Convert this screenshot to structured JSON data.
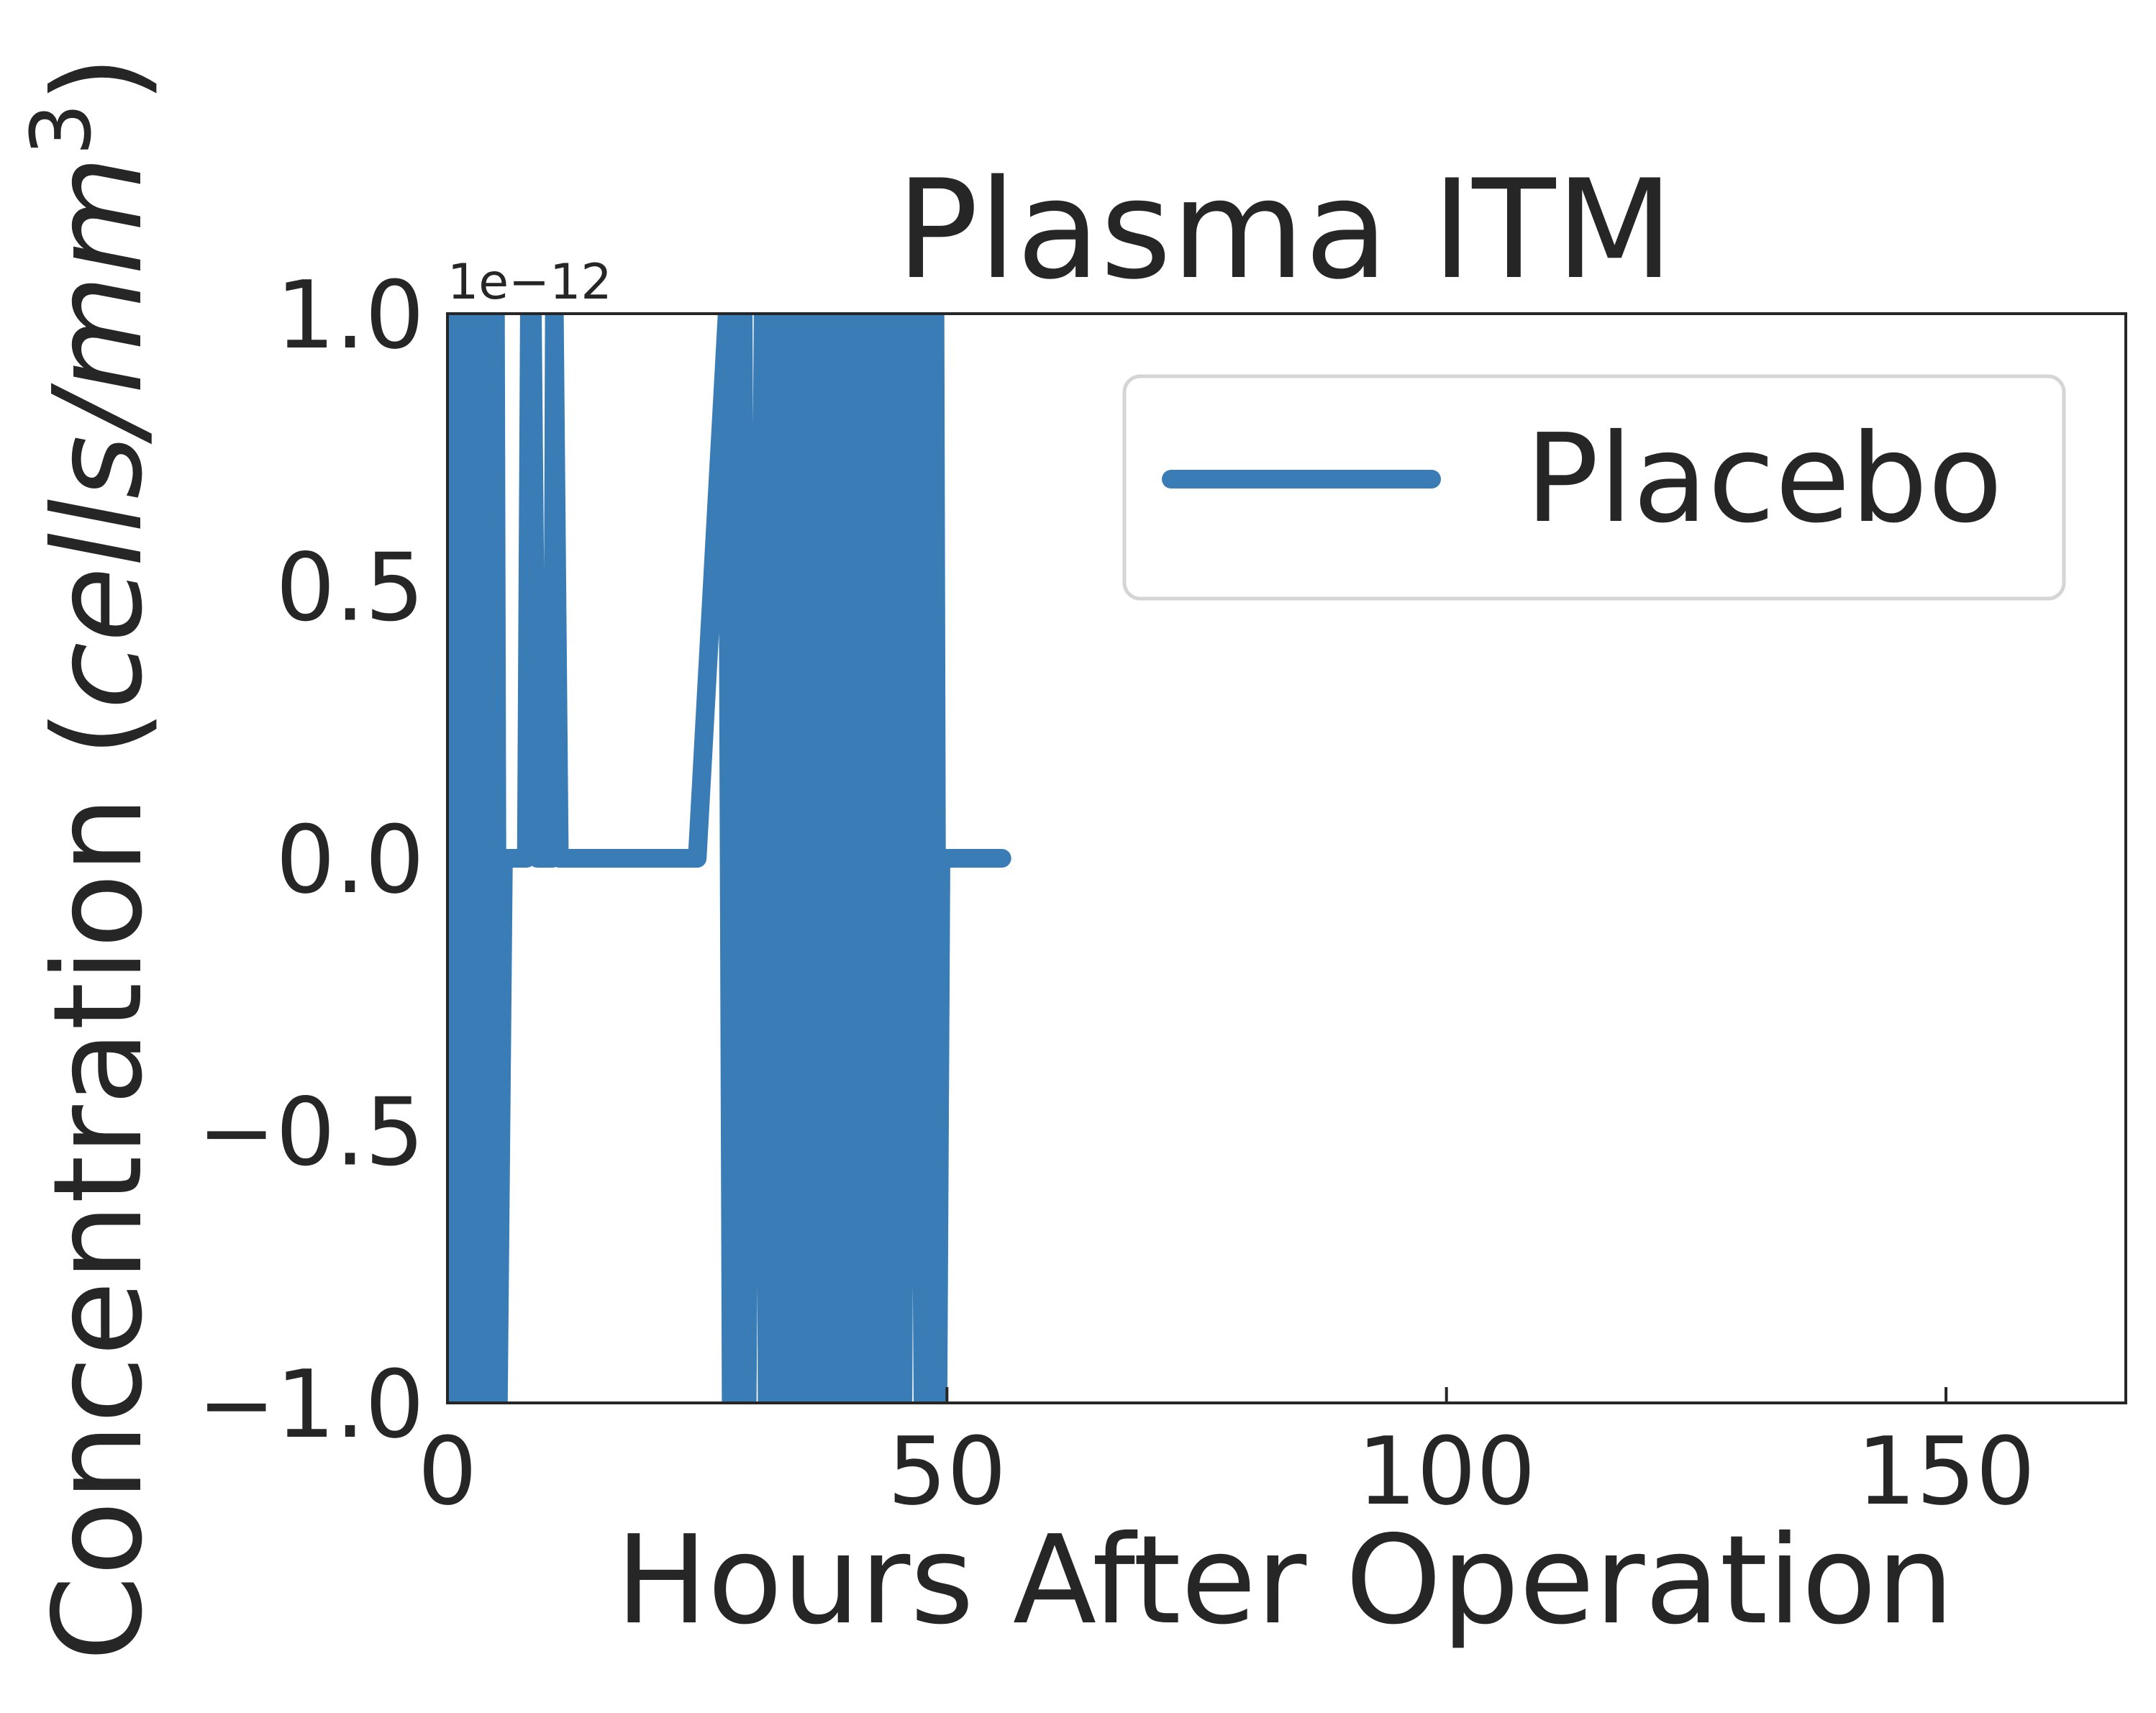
{
  "chart_data": {
    "type": "line",
    "title": "Plasma ITM",
    "xlabel": "Hours After Operation",
    "ylabel_main": "Concentration (",
    "ylabel_unit": "cells/mm",
    "ylabel_sup": "3",
    "ylabel_close": ")",
    "offset_label": "1e−12",
    "xlim": [
      0,
      168
    ],
    "ylim": [
      -1.0,
      1.0
    ],
    "x_ticks": [
      0,
      50,
      100,
      150
    ],
    "x_tick_labels": [
      "0",
      "50",
      "100",
      "150"
    ],
    "y_ticks": [
      -1.0,
      -0.5,
      0.0,
      0.5,
      1.0
    ],
    "y_tick_labels": [
      "−1.0",
      "−0.5",
      "0.0",
      "0.5",
      "1.0"
    ],
    "grid": false,
    "legend": {
      "position": "top-right",
      "entries": [
        "Placebo"
      ]
    },
    "series": [
      {
        "name": "Placebo",
        "color": "#3a7cb5",
        "x": [
          0.0,
          0.3,
          0.6,
          0.9,
          1.2,
          1.5,
          1.8,
          2.1,
          2.4,
          2.7,
          3.0,
          3.3,
          3.6,
          3.9,
          4.2,
          4.5,
          4.8,
          5.1,
          5.6,
          6.5,
          7.3,
          7.9,
          8.2,
          8.5,
          9.0,
          10.5,
          10.7,
          11.2,
          15.0,
          20.0,
          25.0,
          28.0,
          28.4,
          28.8,
          29.2,
          29.6,
          30.0,
          30.4,
          30.8,
          31.2,
          31.6,
          32.0,
          32.4,
          32.8,
          33.2,
          33.6,
          34.0,
          34.4,
          34.8,
          35.2,
          35.6,
          36.0,
          36.4,
          36.8,
          37.2,
          37.6,
          38.0,
          38.4,
          38.8,
          39.2,
          39.6,
          40.0,
          40.4,
          40.8,
          41.2,
          41.6,
          42.0,
          42.4,
          42.8,
          43.2,
          43.6,
          44.0,
          44.4,
          44.8,
          45.2,
          45.6,
          46.0,
          46.4,
          46.8,
          47.2,
          47.6,
          48.0,
          48.4,
          48.8,
          49.1,
          49.4,
          50.0,
          52.0,
          55.5
        ],
        "y": [
          1,
          -1,
          1,
          -1,
          1,
          -1,
          1,
          -1,
          1,
          -1,
          1,
          -1,
          1,
          -1,
          1,
          -1,
          1,
          -1,
          0,
          0,
          0,
          0,
          1,
          1,
          0,
          0,
          1,
          0,
          0,
          0,
          0,
          1,
          -1,
          1,
          -1,
          1,
          -1,
          0,
          0,
          0,
          1,
          -1,
          1,
          -1,
          1,
          -1,
          1,
          -1,
          1,
          -1,
          1,
          -1,
          1,
          -1,
          1,
          -1,
          0,
          0,
          1,
          -1,
          1,
          -1,
          1,
          -1,
          0,
          1,
          -1,
          1,
          -1,
          1,
          -1,
          0,
          1,
          -1,
          1,
          -1,
          1,
          1,
          0,
          0,
          -1,
          1,
          -1,
          1,
          -1,
          0,
          0,
          0,
          0
        ]
      }
    ]
  }
}
